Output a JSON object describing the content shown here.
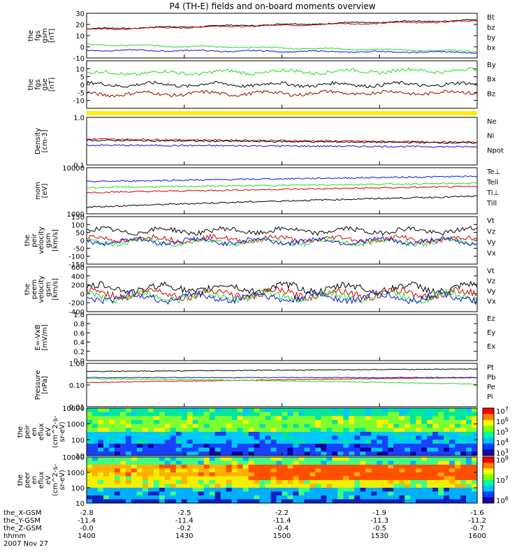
{
  "title": "P4 (TH-E) fields and on-board moments overview",
  "colors": {
    "black": "#000000",
    "red": "#d40000",
    "green": "#22dd22",
    "blue": "#1010e0",
    "darkred": "#990000",
    "yellow": "#ffee00"
  },
  "chart_data": {
    "type": "line",
    "x_axis": {
      "rows": [
        {
          "label": "the_X-GSM",
          "values": [
            "-2.8",
            "-2.5",
            "-2.2",
            "-1.9",
            "-1.6"
          ]
        },
        {
          "label": "the_Y-GSM",
          "values": [
            "-11.4",
            "-11.4",
            "-11.4",
            "-11.3",
            "-11.2"
          ]
        },
        {
          "label": "the_Z-GSM",
          "values": [
            "-0.0",
            "-0.2",
            "-0.4",
            "-0.5",
            "-0.7"
          ]
        },
        {
          "label": "hhmm",
          "values": [
            "1400",
            "1430",
            "1500",
            "1530",
            "1600"
          ]
        }
      ],
      "date": "2007 Nov 27"
    },
    "panels": [
      {
        "id": "fgs-gsm",
        "ylabel": [
          "the",
          "fgs",
          "gsm",
          "[nT]"
        ],
        "ylim": [
          -10,
          30
        ],
        "ticks": [
          "30",
          "20",
          "10",
          "0",
          "-10"
        ],
        "series": [
          {
            "name": "Bt",
            "color": "black",
            "start": 16,
            "end": 24
          },
          {
            "name": "bz",
            "color": "red",
            "start": 15.5,
            "end": 23
          },
          {
            "name": "by",
            "color": "green",
            "start": 2,
            "end": -4
          },
          {
            "name": "bx",
            "color": "blue",
            "start": -3,
            "end": -5
          }
        ]
      },
      {
        "id": "fgs-gse",
        "ylabel": [
          "the",
          "fgs",
          "gse",
          "[nT]"
        ],
        "ylim": [
          -15,
          15
        ],
        "ticks": [
          "10",
          "5",
          "0",
          "-5",
          "-10"
        ],
        "series": [
          {
            "name": "By",
            "color": "green",
            "start": 7,
            "end": 9
          },
          {
            "name": "Bx",
            "color": "black",
            "start": 0,
            "end": 0
          },
          {
            "name": "Bz",
            "color": "darkred",
            "start": -6,
            "end": -5
          }
        ]
      },
      {
        "id": "density",
        "ylabel": [
          "Density",
          "[cm-3]"
        ],
        "ylim": [
          0.1,
          1.0
        ],
        "ticks": [
          "1.0",
          "0.1"
        ],
        "series": [
          {
            "name": "Ne",
            "color": "red",
            "start": 0.35,
            "end": 0.3
          },
          {
            "name": "Ni",
            "color": "black",
            "start": 0.33,
            "end": 0.29
          },
          {
            "name": "Npot",
            "color": "blue",
            "start": 0.26,
            "end": 0.24
          }
        ]
      },
      {
        "id": "temperature",
        "ylabel": [
          "mom",
          "[eV]"
        ],
        "ylim": [
          1000,
          10000
        ],
        "ticks": [
          "10000",
          "1000"
        ],
        "series": [
          {
            "name": "Te⊥",
            "color": "red",
            "start": 2900,
            "end": 3900
          },
          {
            "name": "Tell",
            "color": "black",
            "start": 1400,
            "end": 2400
          },
          {
            "name": "Ti⊥",
            "color": "blue",
            "start": 5000,
            "end": 6500
          },
          {
            "name": "Till",
            "color": "green",
            "start": 3700,
            "end": 4600
          }
        ]
      },
      {
        "id": "peir-velocity",
        "ylabel": [
          "the",
          "peir",
          "velocity",
          "gsm",
          "[km/s]"
        ],
        "ylim": [
          -150,
          150
        ],
        "ticks": [
          "150",
          "100",
          "50",
          "0",
          "-50",
          "-100",
          "-150"
        ],
        "series": [
          {
            "name": "Vt",
            "color": "black",
            "start": 60,
            "end": 60
          },
          {
            "name": "Vz",
            "color": "red",
            "start": 10,
            "end": 5
          },
          {
            "name": "Vy",
            "color": "green",
            "start": -10,
            "end": -10
          },
          {
            "name": "Vx",
            "color": "blue",
            "start": -5,
            "end": -5
          }
        ]
      },
      {
        "id": "peem-velocity",
        "ylabel": [
          "the",
          "peem",
          "velocity",
          "gsm",
          "[km/s]"
        ],
        "ylim": [
          -400,
          600
        ],
        "ticks": [
          "600",
          "400",
          "200",
          "0",
          "-200",
          "-400"
        ],
        "series": [
          {
            "name": "Vt",
            "color": "black",
            "start": 120,
            "end": 120
          },
          {
            "name": "Vz",
            "color": "red",
            "start": 0,
            "end": 0
          },
          {
            "name": "Vy",
            "color": "green",
            "start": -60,
            "end": -60
          },
          {
            "name": "Vx",
            "color": "blue",
            "start": -80,
            "end": -80
          }
        ]
      },
      {
        "id": "efield",
        "ylabel": [
          "E=-VxB",
          "[mV/m]"
        ],
        "ylim": [
          0,
          1
        ],
        "ticks": [
          "1.0",
          "0.8",
          "0.6",
          "0.4",
          "0.2",
          "0.0"
        ],
        "series": [
          {
            "name": "Ez",
            "color": "red"
          },
          {
            "name": "Ey",
            "color": "green"
          },
          {
            "name": "Ex",
            "color": "blue"
          }
        ]
      },
      {
        "id": "pressure",
        "ylabel": [
          "Pressure",
          "[nPa]"
        ],
        "ylim": [
          0.01,
          1.0
        ],
        "ticks": [
          "1.00",
          "0.10",
          "0.01"
        ],
        "series": [
          {
            "name": "Pt",
            "color": "black",
            "start": 0.42,
            "end": 0.55
          },
          {
            "name": "Pb",
            "color": "red",
            "start": 0.13,
            "end": 0.22
          },
          {
            "name": "Pe",
            "color": "green",
            "start": 0.2,
            "end": 0.11
          },
          {
            "name": "Pi",
            "color": "blue",
            "start": 0.22,
            "end": 0.22
          }
        ]
      },
      {
        "id": "peir-spectrogram",
        "type": "heatmap",
        "ylabel": [
          "the",
          "peir",
          "en",
          "eflux",
          "eV",
          "(cm^2-s-",
          "sr-eV)"
        ],
        "ylim": [
          10,
          10000
        ],
        "ticks": [
          "10000",
          "1000",
          "100",
          "10"
        ],
        "colorbar": {
          "labels": [
            "10^7",
            "10^6",
            "10^5",
            "10^4",
            "10^3"
          ]
        }
      },
      {
        "id": "peer-spectrogram",
        "type": "heatmap",
        "ylabel": [
          "the",
          "peer",
          "en",
          "eflux",
          "eV",
          "(cm^2-s-",
          "sr-eV)"
        ],
        "ylim": [
          10,
          10000
        ],
        "ticks": [
          "10000",
          "1000",
          "100",
          "10"
        ],
        "colorbar": {
          "labels": [
            "10^8",
            "10^7",
            "10^6"
          ]
        }
      }
    ]
  }
}
